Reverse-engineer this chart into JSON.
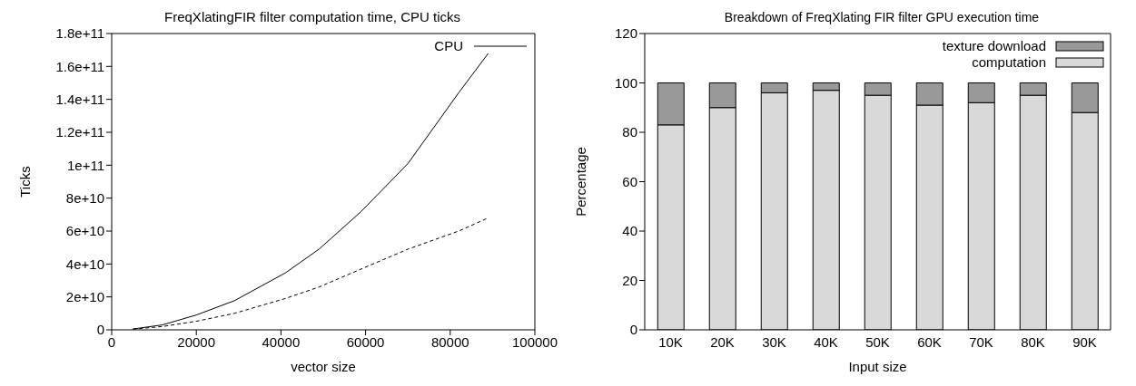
{
  "chart_data": [
    {
      "type": "line",
      "title": "FreqXlatingFIR filter computation time, CPU ticks",
      "xlabel": "vector size",
      "ylabel": "Ticks",
      "xlim": [
        0,
        100000
      ],
      "xticks": [
        0,
        20000,
        40000,
        60000,
        80000,
        100000
      ],
      "ylim": [
        0,
        180000000000
      ],
      "yticks": [
        {
          "value": 0,
          "label": "0"
        },
        {
          "value": 20000000000,
          "label": "2e+10"
        },
        {
          "value": 40000000000,
          "label": "4e+10"
        },
        {
          "value": 60000000000,
          "label": "6e+10"
        },
        {
          "value": 80000000000,
          "label": "8e+10"
        },
        {
          "value": 100000000000,
          "label": "1e+11"
        },
        {
          "value": 120000000000,
          "label": "1.2e+11"
        },
        {
          "value": 140000000000,
          "label": "1.4e+11"
        },
        {
          "value": 160000000000,
          "label": "1.6e+11"
        },
        {
          "value": 180000000000,
          "label": "1.8e+11"
        }
      ],
      "legend": "top right",
      "x": [
        5000,
        12000,
        20000,
        29000,
        41000,
        49000,
        59000,
        70000,
        82000,
        89000
      ],
      "series": [
        {
          "name": "CPU",
          "color": "#000000",
          "line_style": "solid",
          "values": [
            500000000,
            3000000000,
            9000000000,
            17700000000,
            34500000000,
            49000000000,
            72000000000,
            101000000000,
            144000000000,
            168000000000
          ]
        },
        {
          "color": "#000000",
          "line_style": "dashed",
          "values": [
            400000000,
            2000000000,
            5200000000,
            10000000000,
            19000000000,
            26000000000,
            37000000000,
            49000000000,
            60000000000,
            68000000000
          ]
        }
      ]
    },
    {
      "type": "bar",
      "title": "Breakdown of FreqXlating FIR filter GPU execution time",
      "xlabel": "Input size",
      "ylabel": "Percentage",
      "categories": [
        "10K",
        "20K",
        "30K",
        "40K",
        "50K",
        "60K",
        "70K",
        "80K",
        "90K"
      ],
      "ylim": [
        0,
        120
      ],
      "yticks": [
        0,
        20,
        40,
        60,
        80,
        100,
        120
      ],
      "stacked": true,
      "legend": "top right",
      "series": [
        {
          "name": "computation",
          "color": "#d9d9d9",
          "values": [
            83,
            90,
            96,
            97,
            95,
            91,
            92,
            95,
            88
          ]
        },
        {
          "name": "texture download",
          "color": "#999999",
          "values": [
            17,
            10,
            4,
            3,
            5,
            9,
            8,
            5,
            12
          ]
        }
      ]
    }
  ]
}
